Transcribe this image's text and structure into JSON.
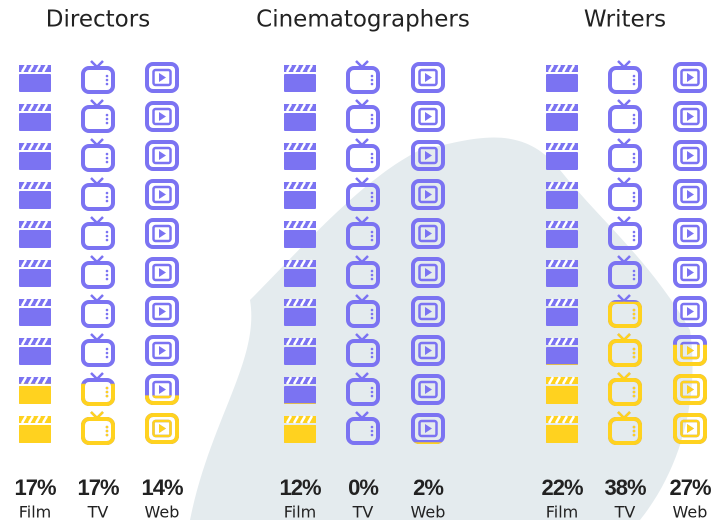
{
  "chart_data": [
    {
      "type": "pictogram",
      "title": "Directors",
      "categories": [
        "Film",
        "TV",
        "Web"
      ],
      "values": [
        17,
        17,
        14
      ],
      "value_labels": [
        "17%",
        "17%",
        "14%"
      ],
      "color": "#7b73f2",
      "fill_color": "#ffd21f"
    },
    {
      "type": "pictogram",
      "title": "Cinematographers",
      "categories": [
        "Film",
        "TV",
        "Web"
      ],
      "values": [
        12,
        0,
        2
      ],
      "value_labels": [
        "12%",
        "0%",
        "2%"
      ],
      "color": "#7b73f2",
      "fill_color": "#ffd21f"
    },
    {
      "type": "pictogram",
      "title": "Writers",
      "categories": [
        "Film",
        "TV",
        "Web"
      ],
      "values": [
        22,
        38,
        27
      ],
      "value_labels": [
        "22%",
        "38%",
        "27%"
      ],
      "color": "#7b73f2",
      "fill_color": "#ffd21f"
    }
  ]
}
